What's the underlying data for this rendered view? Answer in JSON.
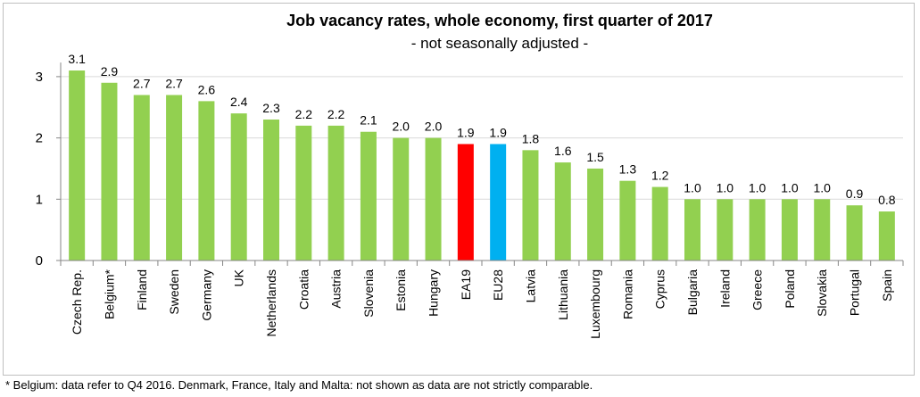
{
  "footnote": "* Belgium: data refer to Q4 2016. Denmark, France, Italy and Malta: not shown as data are not strictly comparable.",
  "chart_data": {
    "type": "bar",
    "title": "Job vacancy rates, whole economy, first quarter of 2017",
    "subtitle": "- not seasonally adjusted -",
    "categories": [
      "Czech Rep.",
      "Belgium*",
      "Finland",
      "Sweden",
      "Germany",
      "UK",
      "Netherlands",
      "Croatia",
      "Austria",
      "Slovenia",
      "Estonia",
      "Hungary",
      "EA19",
      "EU28",
      "Latvia",
      "Lithuania",
      "Luxembourg",
      "Romania",
      "Cyprus",
      "Bulgaria",
      "Ireland",
      "Greece",
      "Poland",
      "Slovakia",
      "Portugal",
      "Spain"
    ],
    "values": [
      3.1,
      2.9,
      2.7,
      2.7,
      2.6,
      2.4,
      2.3,
      2.2,
      2.2,
      2.1,
      2.0,
      2.0,
      1.9,
      1.9,
      1.8,
      1.6,
      1.5,
      1.3,
      1.2,
      1.0,
      1.0,
      1.0,
      1.0,
      1.0,
      0.9,
      0.8
    ],
    "value_labels": [
      "3.1",
      "2.9",
      "2.7",
      "2.7",
      "2.6",
      "2.4",
      "2.3",
      "2.2",
      "2.2",
      "2.1",
      "2.0",
      "2.0",
      "1.9",
      "1.9",
      "1.8",
      "1.6",
      "1.5",
      "1.3",
      "1.2",
      "1.0",
      "1.0",
      "1.0",
      "1.0",
      "1.0",
      "0.9",
      "0.8"
    ],
    "ylim": [
      0,
      3.2
    ],
    "yticks": [
      "0",
      "1",
      "2",
      "3"
    ],
    "grid": true,
    "colors": {
      "default": "#92d050",
      "EA19": "#ff0000",
      "EU28": "#00b0f0",
      "grid": "#d9d9d9",
      "axis": "#868686"
    }
  }
}
